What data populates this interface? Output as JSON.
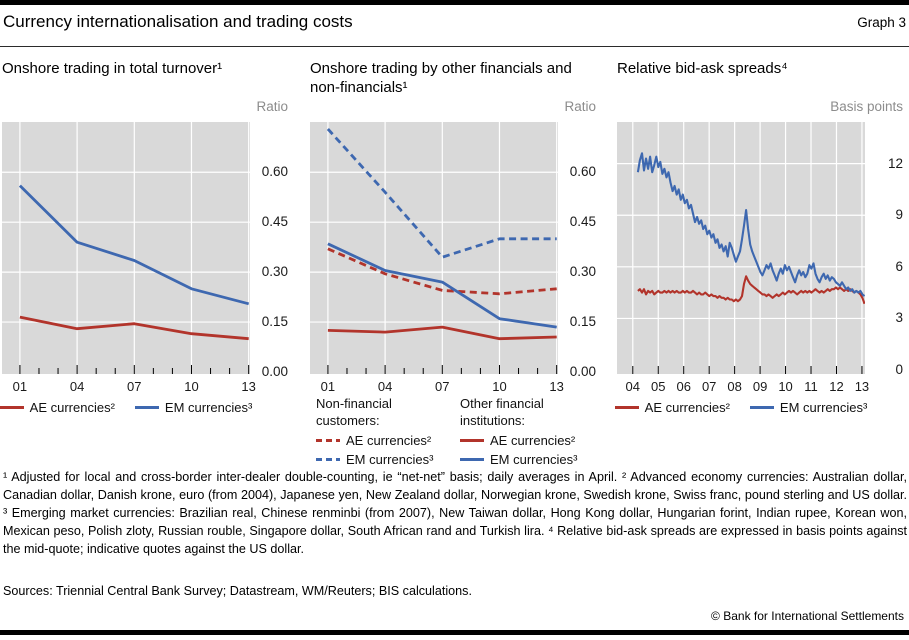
{
  "header": {
    "title": "Currency internationalisation and trading costs",
    "graph_label": "Graph 3"
  },
  "colors": {
    "ae_red": "#b2342b",
    "em_blue": "#3e68b0",
    "plot_background": "#d9d9d9",
    "gridline": "#ffffff",
    "unit_label_gray": "#8c8c8c"
  },
  "chart_data": [
    {
      "type": "line",
      "title": "Onshore trading in total turnover¹",
      "unit_label": "Ratio",
      "xlim": [
        2000.06,
        2013.07
      ],
      "ylim": [
        -0.006,
        0.751
      ],
      "yticks": [
        0,
        0.15,
        0.3,
        0.45,
        0.6
      ],
      "ytick_labels": [
        "0.00",
        "0.15",
        "0.30",
        "0.45",
        "0.60"
      ],
      "xticks_major": [
        2001,
        2004,
        2007,
        2010,
        2013
      ],
      "xtick_labels": [
        "01",
        "04",
        "07",
        "10",
        "13"
      ],
      "xticks_minor": [
        2002,
        2003,
        2005,
        2006,
        2008,
        2009,
        2011,
        2012
      ],
      "grid_x": [
        2001,
        2004,
        2007,
        2010,
        2013
      ],
      "series": [
        {
          "name": "AE currencies²",
          "style": "solid",
          "color": "#b2342b",
          "x": [
            2001,
            2004,
            2007,
            2010,
            2013
          ],
          "values": [
            0.165,
            0.13,
            0.145,
            0.115,
            0.1
          ]
        },
        {
          "name": "EM currencies³",
          "style": "solid",
          "color": "#3e68b0",
          "x": [
            2001,
            2004,
            2007,
            2010,
            2013
          ],
          "values": [
            0.56,
            0.39,
            0.335,
            0.25,
            0.205
          ]
        }
      ],
      "legend": {
        "layout": "inline",
        "items": [
          {
            "label": "AE currencies²",
            "color": "#b2342b",
            "style": "solid"
          },
          {
            "label": "EM currencies³",
            "color": "#3e68b0",
            "style": "solid"
          }
        ]
      }
    },
    {
      "type": "line",
      "title": "Onshore trading by other financials and non-financials¹",
      "unit_label": "Ratio",
      "xlim": [
        2000.06,
        2013.07
      ],
      "ylim": [
        -0.006,
        0.751
      ],
      "yticks": [
        0,
        0.15,
        0.3,
        0.45,
        0.6
      ],
      "ytick_labels": [
        "0.00",
        "0.15",
        "0.30",
        "0.45",
        "0.60"
      ],
      "xticks_major": [
        2001,
        2004,
        2007,
        2010,
        2013
      ],
      "xtick_labels": [
        "01",
        "04",
        "07",
        "10",
        "13"
      ],
      "xticks_minor": [
        2002,
        2003,
        2005,
        2006,
        2008,
        2009,
        2011,
        2012
      ],
      "grid_x": [
        2001,
        2004,
        2007,
        2010,
        2013
      ],
      "series": [
        {
          "name": "Non-financial customers: AE currencies²",
          "style": "dashed",
          "color": "#b2342b",
          "x": [
            2001,
            2004,
            2007,
            2010,
            2013
          ],
          "values": [
            0.37,
            0.295,
            0.245,
            0.235,
            0.25
          ]
        },
        {
          "name": "Non-financial customers: EM currencies³",
          "style": "dashed",
          "color": "#3e68b0",
          "x": [
            2001,
            2004,
            2007,
            2010,
            2013
          ],
          "values": [
            0.73,
            0.54,
            0.345,
            0.4,
            0.4
          ]
        },
        {
          "name": "Other financial institutions: AE currencies²",
          "style": "solid",
          "color": "#b2342b",
          "x": [
            2001,
            2004,
            2007,
            2010,
            2013
          ],
          "values": [
            0.125,
            0.12,
            0.135,
            0.1,
            0.105
          ]
        },
        {
          "name": "Other financial institutions: EM currencies³",
          "style": "solid",
          "color": "#3e68b0",
          "x": [
            2001,
            2004,
            2007,
            2010,
            2013
          ],
          "values": [
            0.385,
            0.305,
            0.27,
            0.16,
            0.135
          ]
        }
      ],
      "legend": {
        "layout": "grouped",
        "groups": [
          {
            "heading": "Non-financial customers:",
            "items": [
              {
                "label": "AE currencies²",
                "color": "#b2342b",
                "style": "dashed"
              },
              {
                "label": "EM currencies³",
                "color": "#3e68b0",
                "style": "dashed"
              }
            ]
          },
          {
            "heading": "Other financial institutions:",
            "items": [
              {
                "label": "AE currencies²",
                "color": "#b2342b",
                "style": "solid"
              },
              {
                "label": "EM currencies³",
                "color": "#3e68b0",
                "style": "solid"
              }
            ]
          }
        ]
      }
    },
    {
      "type": "line",
      "title": "Relative bid-ask spreads⁴",
      "unit_label": "Basis points",
      "xlim": [
        2003.38,
        2013.12
      ],
      "ylim": [
        -0.23,
        14.42
      ],
      "yticks": [
        0,
        3,
        6,
        9,
        12
      ],
      "ytick_labels": [
        "0",
        "3",
        "6",
        "9",
        "12"
      ],
      "xticks_major": [
        2004,
        2005,
        2006,
        2007,
        2008,
        2009,
        2010,
        2011,
        2012,
        2013
      ],
      "xtick_labels": [
        "04",
        "05",
        "06",
        "07",
        "08",
        "09",
        "10",
        "11",
        "12",
        "13"
      ],
      "xticks_minor": [],
      "grid_x": [
        2004,
        2005,
        2006,
        2007,
        2008,
        2009,
        2010,
        2011,
        2012,
        2013
      ],
      "series": [
        {
          "name": "AE currencies²",
          "style": "solid",
          "color": "#b2342b",
          "x_start": 2004.2,
          "x_end": 2013.1,
          "values": [
            4.6,
            4.7,
            4.5,
            4.7,
            4.4,
            4.6,
            4.5,
            4.6,
            4.4,
            4.5,
            4.6,
            4.5,
            4.5,
            4.6,
            4.5,
            4.6,
            4.5,
            4.6,
            4.5,
            4.6,
            4.5,
            4.5,
            4.6,
            4.5,
            4.6,
            4.5,
            4.5,
            4.6,
            4.5,
            4.4,
            4.5,
            4.4,
            4.4,
            4.5,
            4.4,
            4.3,
            4.4,
            4.3,
            4.3,
            4.2,
            4.3,
            4.2,
            4.2,
            4.1,
            4.2,
            4.1,
            4.1,
            4.0,
            4.1,
            4.0,
            4.1,
            4.3,
            5.0,
            5.45,
            5.2,
            5.0,
            4.9,
            4.8,
            4.7,
            4.6,
            4.5,
            4.4,
            4.4,
            4.3,
            4.4,
            4.3,
            4.2,
            4.3,
            4.4,
            4.3,
            4.4,
            4.5,
            4.4,
            4.5,
            4.6,
            4.5,
            4.6,
            4.5,
            4.4,
            4.5,
            4.6,
            4.5,
            4.6,
            4.5,
            4.6,
            4.5,
            4.6,
            4.7,
            4.6,
            4.5,
            4.6,
            4.5,
            4.6,
            4.7,
            4.6,
            4.7,
            4.7,
            4.8,
            4.7,
            4.8,
            4.7,
            4.6,
            4.7,
            4.6,
            4.7,
            4.6,
            4.5,
            4.6,
            4.5,
            4.4,
            4.2,
            3.85
          ]
        },
        {
          "name": "EM currencies³",
          "style": "solid",
          "color": "#3e68b0",
          "x_start": 2004.2,
          "x_end": 2013.1,
          "values": [
            11.5,
            12.2,
            12.6,
            11.6,
            12.3,
            11.7,
            12.4,
            11.5,
            11.9,
            12.4,
            11.8,
            12.1,
            11.4,
            11.7,
            11.2,
            11.5,
            10.9,
            10.4,
            10.7,
            10.2,
            10.5,
            9.9,
            10.2,
            9.7,
            9.9,
            9.4,
            9.6,
            9.1,
            8.6,
            8.9,
            8.5,
            8.7,
            8.2,
            8.4,
            7.9,
            8.1,
            7.7,
            7.9,
            7.4,
            7.6,
            7.1,
            7.3,
            6.9,
            7.2,
            6.6,
            7.4,
            7.1,
            6.7,
            6.3,
            6.6,
            6.9,
            7.6,
            8.4,
            9.3,
            8.2,
            7.3,
            6.9,
            6.6,
            6.3,
            6.0,
            5.7,
            5.5,
            5.8,
            6.1,
            5.9,
            6.2,
            5.8,
            5.5,
            5.2,
            5.6,
            5.9,
            5.6,
            6.1,
            5.8,
            6.0,
            5.7,
            5.4,
            5.1,
            5.5,
            5.8,
            5.5,
            5.7,
            5.4,
            5.6,
            6.1,
            5.9,
            6.2,
            5.6,
            5.3,
            5.1,
            5.4,
            5.6,
            5.3,
            5.5,
            5.2,
            5.4,
            5.3,
            5.1,
            5.0,
            4.9,
            5.1,
            4.9,
            4.7,
            4.8,
            4.6,
            4.7,
            4.5,
            4.6,
            4.5,
            4.6,
            4.4,
            4.3
          ]
        }
      ],
      "legend": {
        "layout": "inline",
        "items": [
          {
            "label": "AE currencies²",
            "color": "#b2342b",
            "style": "solid"
          },
          {
            "label": "EM currencies³",
            "color": "#3e68b0",
            "style": "solid"
          }
        ]
      }
    }
  ],
  "notes": {
    "footnotes": "¹  Adjusted for local and cross-border inter-dealer double-counting, ie “net-net” basis; daily averages in April.   ²  Advanced economy currencies: Australian dollar, Canadian dollar, Danish krone, euro (from 2004), Japanese yen,  New Zealand dollar, Norwegian krone, Swedish krone, Swiss franc, pound sterling and US dollar.   ³  Emerging market currencies: Brazilian real, Chinese renminbi (from 2007), New Taiwan dollar, Hong Kong dollar, Hungarian forint, Indian rupee, Korean won, Mexican peso, Polish zloty, Russian rouble, Singapore dollar, South African rand and Turkish lira.   ⁴  Relative bid-ask spreads are expressed in basis points against the mid-quote; indicative quotes against the US dollar.",
    "sources": "Sources: Triennial Central Bank Survey; Datastream, WM/Reuters; BIS calculations.",
    "copyright": "© Bank for International Settlements"
  }
}
